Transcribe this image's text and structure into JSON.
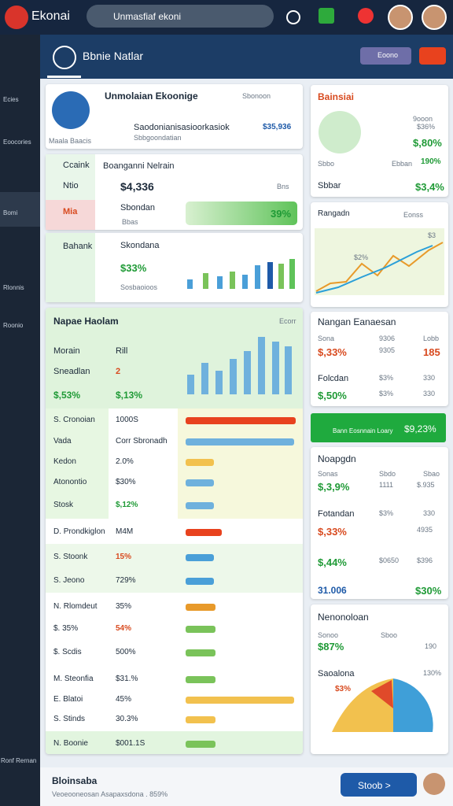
{
  "topbar": {
    "logo": "Ekonai",
    "search": "Unmasfiaf ekoni"
  },
  "sidebar": {
    "items": [
      "Ecies",
      "Eoocories",
      "Bomi",
      "Rlonnis",
      "Roonio"
    ],
    "footer": "Ronf Rernan"
  },
  "header": {
    "title": "Bbnie Natlar",
    "pill": "Eoono"
  },
  "card1": {
    "title": "Unmolaian Ekoonige",
    "tag": "Sbonoon",
    "caption": "Maala Baacis",
    "line": "Saodonianisasioorkasiok",
    "amount": "$35,936",
    "sub": "Sbbgoondatian"
  },
  "card2": {
    "tabs": [
      "Ccaink",
      "Ntio",
      "Mia"
    ],
    "title": "Boanganni Nelrain",
    "amount": "$4,336",
    "name": "Sbondan",
    "sub": "Bbas",
    "badge": "Bns",
    "pct": "39%"
  },
  "card3": {
    "tab": "Bahank",
    "title": "Skondana",
    "amount": "$33%",
    "sub": "Sosbaoioos"
  },
  "table": {
    "title": "Napae Haolam",
    "action": "Ecorr",
    "head": [
      [
        "Morain",
        "Rill"
      ],
      [
        "Sneadlan",
        "2"
      ],
      [
        "$,53%",
        "$,13%"
      ]
    ],
    "rows": [
      [
        "S. Cronoian",
        "1000S"
      ],
      [
        "Vada",
        "Corr Sbronadh"
      ],
      [
        "Kedon",
        "2.0%"
      ],
      [
        "Atonontio",
        "$30%"
      ],
      [
        "Stosk",
        "$,12%"
      ],
      [
        "D. Prondkiglon",
        "M4M"
      ],
      [
        "S. Stoonk",
        "15%"
      ],
      [
        "S. Jeono",
        "729%"
      ],
      [
        "N. Rlomdeut",
        "35%"
      ],
      [
        "$. 35%",
        "54%"
      ],
      [
        "$. Scdis",
        "500%"
      ],
      [
        "M. Steonfia",
        "$31.%"
      ],
      [
        "E. Blatoi",
        "45%"
      ],
      [
        "S. Stinds",
        "30.3%"
      ],
      [
        "N. Boonie",
        "$001.1S"
      ]
    ]
  },
  "panel1": {
    "title": "Bainsiai",
    "c1": "9ooon",
    "c2": "$36%",
    "c3": "$,80%",
    "c4": "Sbbo",
    "c5": "Ebban",
    "c6": "190%",
    "c7": "Sbbar",
    "c8": "$3,4%"
  },
  "panel2": {
    "title": "Rangadn",
    "pill": "Eonss",
    "tag1": "$2%",
    "tag2": "$3"
  },
  "panel3": {
    "title": "Nangan Eanaesan",
    "row1": [
      "Sona",
      "9306",
      "Lobb"
    ],
    "row2": [
      "$,33%",
      "9305",
      "185"
    ],
    "row3": [
      "Folcdan",
      "$3%",
      "330"
    ],
    "row4": [
      "$,50%",
      "$3%",
      "330"
    ]
  },
  "banner": {
    "text": "Bann Eosnnain Loary",
    "value": "$9,23%"
  },
  "panel4": {
    "title": "Noapgdn",
    "row1": [
      "Sonas",
      "Sbdo",
      "Sbao"
    ],
    "row2": [
      "$,3,9%",
      "1111",
      "$.935"
    ],
    "row3": [
      "Fotandan",
      "$3%",
      "330"
    ],
    "row4": [
      "$,33%",
      "4935"
    ],
    "row5": [
      "$,44%",
      "$0650",
      "$396"
    ],
    "row6": [
      "31.006",
      "$30%"
    ]
  },
  "panel5": {
    "title": "Nenonoloan",
    "row1": [
      "Sonoo",
      "Sboo"
    ],
    "amount": "$87%",
    "v": "190",
    "sub": "Saoalona",
    "pct": "130%",
    "tag": "$3%"
  },
  "footer": {
    "title": "Bloinsaba",
    "line": "Veoeooneosan Asapaxsdona . 859%",
    "button": "Stoob >"
  }
}
